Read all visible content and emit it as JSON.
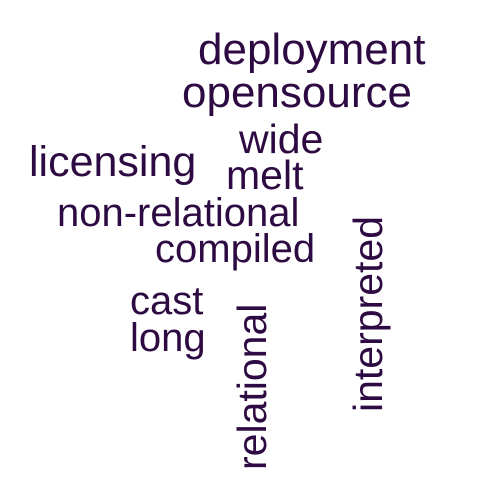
{
  "color": "#2d0a42",
  "words": {
    "deployment": "deployment",
    "opensource": "opensource",
    "wide": "wide",
    "licensing": "licensing",
    "melt": "melt",
    "non_relational": "non-relational",
    "compiled": "compiled",
    "cast": "cast",
    "long": "long",
    "interpreted": "interpreted",
    "relational": "relational"
  }
}
